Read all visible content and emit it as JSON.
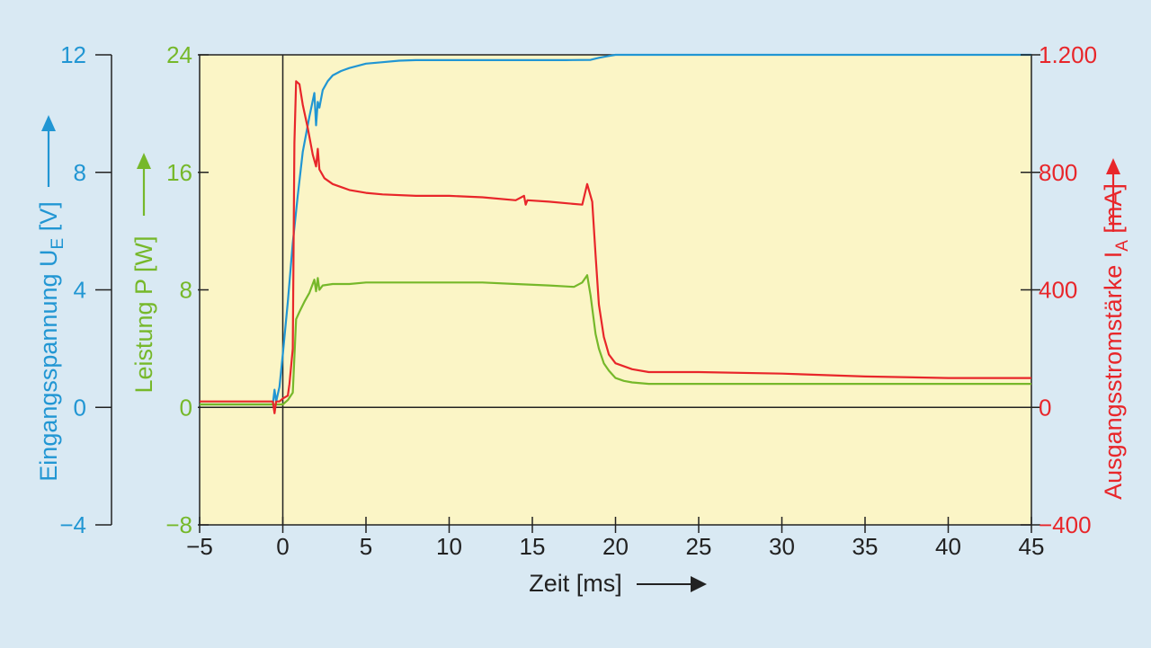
{
  "colors": {
    "background": "#d9e9f3",
    "plot_background": "#fbf5c6",
    "axis": "#222222",
    "voltage": "#2196d3",
    "power": "#76b82a",
    "current": "#e8262a",
    "text": "#222222"
  },
  "chart_data": {
    "type": "line",
    "title": "",
    "xlabel": "Zeit [ms]",
    "xlim": [
      -5,
      45
    ],
    "x_ticks": [
      -5,
      0,
      5,
      10,
      15,
      20,
      25,
      30,
      35,
      40,
      45
    ],
    "x_tick_labels": [
      "−5",
      "0",
      "5",
      "10",
      "15",
      "20",
      "25",
      "30",
      "35",
      "40",
      "45"
    ],
    "grid": false,
    "y_axes": [
      {
        "id": "voltage",
        "label_main": "Eingangsspannung U",
        "label_sub": "E",
        "label_unit": " [V]",
        "ylim": [
          -4,
          12
        ],
        "ticks": [
          -4,
          0,
          4,
          8,
          12
        ],
        "tick_labels": [
          "−4",
          "0",
          "4",
          "8",
          "12"
        ]
      },
      {
        "id": "power",
        "label_main": "Leistung P [W]",
        "label_sub": "",
        "label_unit": "",
        "ylim": [
          -8,
          24
        ],
        "ticks": [
          -8,
          0,
          8,
          16,
          24
        ],
        "tick_labels": [
          "−8",
          "0",
          "8",
          "16",
          "24"
        ]
      },
      {
        "id": "current",
        "label_main": "Ausgangsstromstärke I",
        "label_sub": "A",
        "label_unit": " [mA]",
        "ylim": [
          -400,
          1200
        ],
        "ticks": [
          -400,
          0,
          400,
          800,
          1200
        ],
        "tick_labels": [
          "−400",
          "0",
          "400",
          "800",
          "1.200"
        ]
      }
    ],
    "series": [
      {
        "id": "voltage",
        "axis": "voltage",
        "color": "#2196d3",
        "x": [
          -5,
          -0.6,
          -0.5,
          -0.4,
          -0.2,
          0,
          0.3,
          0.6,
          0.9,
          1.2,
          1.6,
          1.9,
          2.0,
          2.1,
          2.2,
          2.4,
          2.7,
          3.0,
          3.5,
          4.0,
          5.0,
          6.0,
          7.0,
          8.0,
          10.0,
          12.0,
          15.0,
          17.0,
          18.5,
          19.0,
          19.5,
          20.0,
          25.0,
          30.0,
          35.0,
          40.0,
          45.0
        ],
        "y": [
          0.1,
          0.1,
          0.6,
          0.2,
          0.7,
          1.8,
          3.6,
          5.6,
          7.2,
          8.7,
          9.9,
          10.7,
          9.6,
          10.4,
          10.2,
          10.8,
          11.1,
          11.3,
          11.45,
          11.55,
          11.7,
          11.75,
          11.8,
          11.82,
          11.82,
          11.82,
          11.82,
          11.82,
          11.83,
          11.9,
          11.95,
          12.0,
          12.0,
          12.0,
          12.0,
          12.0,
          12.0
        ]
      },
      {
        "id": "power",
        "axis": "power",
        "color": "#76b82a",
        "x": [
          -5,
          -0.5,
          0,
          0.3,
          0.6,
          0.8,
          1.0,
          1.3,
          1.6,
          1.9,
          2.0,
          2.1,
          2.2,
          2.4,
          3.0,
          4.0,
          5.0,
          8.0,
          10.0,
          12.0,
          14.0,
          16.0,
          17.5,
          18.0,
          18.3,
          18.5,
          18.8,
          19.0,
          19.3,
          19.6,
          20.0,
          20.5,
          21.0,
          22.0,
          25.0,
          30.0,
          35.0,
          40.0,
          45.0
        ],
        "y": [
          0.2,
          0.2,
          0.2,
          0.5,
          1.0,
          6.0,
          6.5,
          7.2,
          7.8,
          8.7,
          7.9,
          8.8,
          8.0,
          8.3,
          8.4,
          8.4,
          8.5,
          8.5,
          8.5,
          8.5,
          8.4,
          8.3,
          8.2,
          8.5,
          9.0,
          7.6,
          5.0,
          4.0,
          3.0,
          2.5,
          2.0,
          1.8,
          1.7,
          1.6,
          1.6,
          1.6,
          1.6,
          1.6,
          1.6
        ]
      },
      {
        "id": "current",
        "axis": "current",
        "color": "#e8262a",
        "x": [
          -5,
          -0.6,
          -0.5,
          -0.4,
          -0.2,
          0,
          0.3,
          0.4,
          0.6,
          0.7,
          0.8,
          1.0,
          1.2,
          1.5,
          1.8,
          2.0,
          2.1,
          2.2,
          2.5,
          3.0,
          4.0,
          5.0,
          6.0,
          8.0,
          10.0,
          12.0,
          14.0,
          14.5,
          14.6,
          14.7,
          16.0,
          18.0,
          18.3,
          18.6,
          18.8,
          19.0,
          19.3,
          19.6,
          20.0,
          21.0,
          22.0,
          25.0,
          30.0,
          35.0,
          40.0,
          45.0
        ],
        "y": [
          20,
          20,
          -20,
          20,
          20,
          30,
          40,
          80,
          200,
          900,
          1110,
          1100,
          1030,
          950,
          860,
          820,
          880,
          810,
          780,
          760,
          740,
          730,
          725,
          720,
          720,
          715,
          705,
          720,
          690,
          705,
          700,
          690,
          760,
          700,
          520,
          350,
          240,
          180,
          150,
          130,
          120,
          120,
          115,
          105,
          100,
          100
        ]
      }
    ],
    "annotations": []
  }
}
